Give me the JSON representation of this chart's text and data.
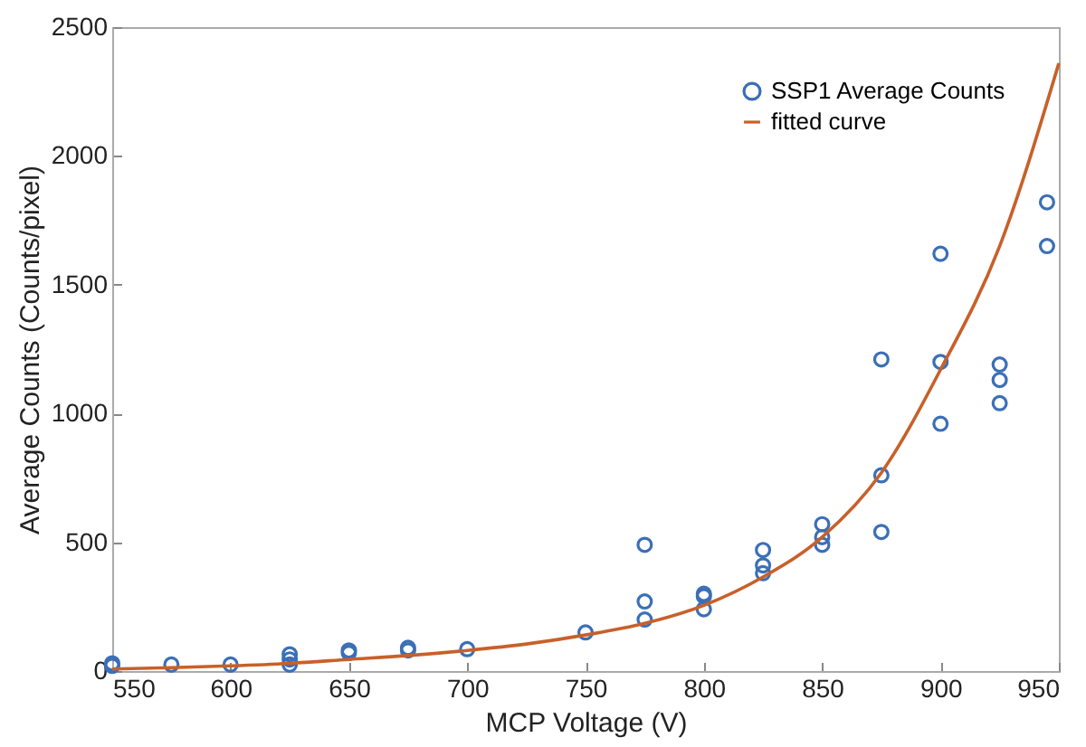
{
  "chart_data": {
    "type": "scatter",
    "xlabel": "MCP Voltage (V)",
    "ylabel": "Average Counts (Counts/pixel)",
    "xlim": [
      550,
      950
    ],
    "xticks": [
      550,
      600,
      650,
      700,
      750,
      800,
      850,
      900,
      950
    ],
    "ylim": [
      0,
      2500
    ],
    "yticks": [
      0,
      500,
      1000,
      1500,
      2000,
      2500
    ],
    "grid": false,
    "legend": "top right",
    "series": [
      {
        "name": "SSP1 Average Counts",
        "marker": "circle",
        "color": "#3b6fb6",
        "x": [
          550,
          550,
          575,
          600,
          625,
          625,
          625,
          650,
          650,
          675,
          675,
          700,
          750,
          775,
          775,
          775,
          800,
          800,
          800,
          825,
          825,
          825,
          850,
          850,
          850,
          875,
          875,
          875,
          900,
          900,
          900,
          925,
          925,
          925,
          945,
          945
        ],
        "values": [
          20,
          30,
          25,
          25,
          65,
          45,
          25,
          80,
          70,
          90,
          80,
          85,
          150,
          490,
          270,
          200,
          300,
          290,
          240,
          470,
          410,
          380,
          570,
          520,
          490,
          1210,
          760,
          540,
          1620,
          1200,
          960,
          1190,
          1130,
          1040,
          1820,
          1650
        ]
      },
      {
        "name": "fitted curve",
        "type": "line",
        "color": "#c8602a",
        "line_style": "solid",
        "x": [
          550,
          575,
          600,
          625,
          650,
          675,
          700,
          725,
          750,
          775,
          800,
          825,
          850,
          875,
          900,
          925,
          950
        ],
        "values": [
          8,
          13,
          20,
          30,
          45,
          60,
          80,
          105,
          140,
          185,
          255,
          365,
          520,
          770,
          1170,
          1650,
          2360
        ]
      }
    ]
  }
}
